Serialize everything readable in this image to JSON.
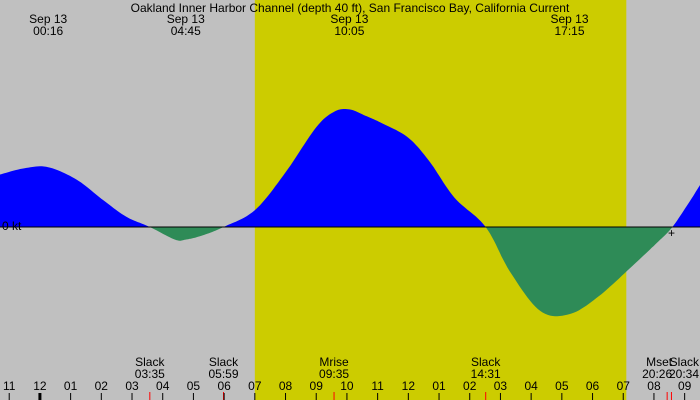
{
  "chart_data": {
    "type": "area",
    "title": "Oakland Inner Harbor Channel (depth 40 ft), San Francisco Bay, California Current",
    "zero_label": "0 kt",
    "x_range_hours": [
      -1.3,
      21.5
    ],
    "y_range_kt": [
      -1.3,
      1.7
    ],
    "daylight_hours": [
      7.0,
      19.1
    ],
    "colors": {
      "night": "#c0c0c0",
      "day": "#cccc00",
      "flood": "#0000ff",
      "ebb": "#2e8b57",
      "axis": "#000000",
      "tick_minor": "#ff0000"
    },
    "current_series": [
      {
        "t": -1.3,
        "v": 0.5
      },
      {
        "t": -0.5,
        "v": 0.56
      },
      {
        "t": 0.27,
        "v": 0.57
      },
      {
        "t": 1.2,
        "v": 0.45
      },
      {
        "t": 2.0,
        "v": 0.27
      },
      {
        "t": 2.8,
        "v": 0.1
      },
      {
        "t": 3.58,
        "v": 0.0
      },
      {
        "t": 4.4,
        "v": -0.12
      },
      {
        "t": 4.75,
        "v": -0.12
      },
      {
        "t": 5.3,
        "v": -0.08
      },
      {
        "t": 5.98,
        "v": 0.0
      },
      {
        "t": 7.0,
        "v": 0.16
      },
      {
        "t": 8.0,
        "v": 0.52
      },
      {
        "t": 9.0,
        "v": 0.95
      },
      {
        "t": 9.6,
        "v": 1.1
      },
      {
        "t": 10.08,
        "v": 1.12
      },
      {
        "t": 10.6,
        "v": 1.06
      },
      {
        "t": 11.2,
        "v": 0.98
      },
      {
        "t": 12.0,
        "v": 0.85
      },
      {
        "t": 12.7,
        "v": 0.62
      },
      {
        "t": 13.5,
        "v": 0.28
      },
      {
        "t": 14.52,
        "v": 0.0
      },
      {
        "t": 15.3,
        "v": -0.42
      },
      {
        "t": 16.3,
        "v": -0.8
      },
      {
        "t": 17.25,
        "v": -0.83
      },
      {
        "t": 18.2,
        "v": -0.66
      },
      {
        "t": 19.3,
        "v": -0.37
      },
      {
        "t": 20.1,
        "v": -0.15
      },
      {
        "t": 20.6,
        "v": 0.0
      },
      {
        "t": 21.2,
        "v": 0.26
      },
      {
        "t": 21.5,
        "v": 0.4
      }
    ],
    "top_labels": [
      {
        "t": 0.27,
        "line1": "Sep 13",
        "line2": "00:16"
      },
      {
        "t": 4.75,
        "line1": "Sep 13",
        "line2": "04:45"
      },
      {
        "t": 10.08,
        "line1": "Sep 13",
        "line2": "10:05"
      },
      {
        "t": 17.25,
        "line1": "Sep 13",
        "line2": "17:15"
      }
    ],
    "events": [
      {
        "t": 3.58,
        "line1": "Slack",
        "line2": "03:35"
      },
      {
        "t": 5.98,
        "line1": "Slack",
        "line2": "05:59"
      },
      {
        "t": 9.58,
        "line1": "Mrise",
        "line2": "09:35"
      },
      {
        "t": 14.52,
        "line1": "Slack",
        "line2": "14:31"
      },
      {
        "t": 20.43,
        "line1": "Mset",
        "line2": "20:26"
      },
      {
        "t": 20.57,
        "line1": "Slack",
        "line2": "20:34"
      }
    ],
    "x_ticks": [
      {
        "t": -1,
        "label": "11"
      },
      {
        "t": 0,
        "label": "12"
      },
      {
        "t": 1,
        "label": "01"
      },
      {
        "t": 2,
        "label": "02"
      },
      {
        "t": 3,
        "label": "03"
      },
      {
        "t": 4,
        "label": "04"
      },
      {
        "t": 5,
        "label": "05"
      },
      {
        "t": 6,
        "label": "06"
      },
      {
        "t": 7,
        "label": "07"
      },
      {
        "t": 8,
        "label": "08"
      },
      {
        "t": 9,
        "label": "09"
      },
      {
        "t": 10,
        "label": "10"
      },
      {
        "t": 11,
        "label": "11"
      },
      {
        "t": 12,
        "label": "12"
      },
      {
        "t": 13,
        "label": "01"
      },
      {
        "t": 14,
        "label": "02"
      },
      {
        "t": 15,
        "label": "03"
      },
      {
        "t": 16,
        "label": "04"
      },
      {
        "t": 17,
        "label": "05"
      },
      {
        "t": 18,
        "label": "06"
      },
      {
        "t": 19,
        "label": "07"
      },
      {
        "t": 20,
        "label": "08"
      },
      {
        "t": 21,
        "label": "09"
      }
    ],
    "marker_symbol": "+"
  }
}
